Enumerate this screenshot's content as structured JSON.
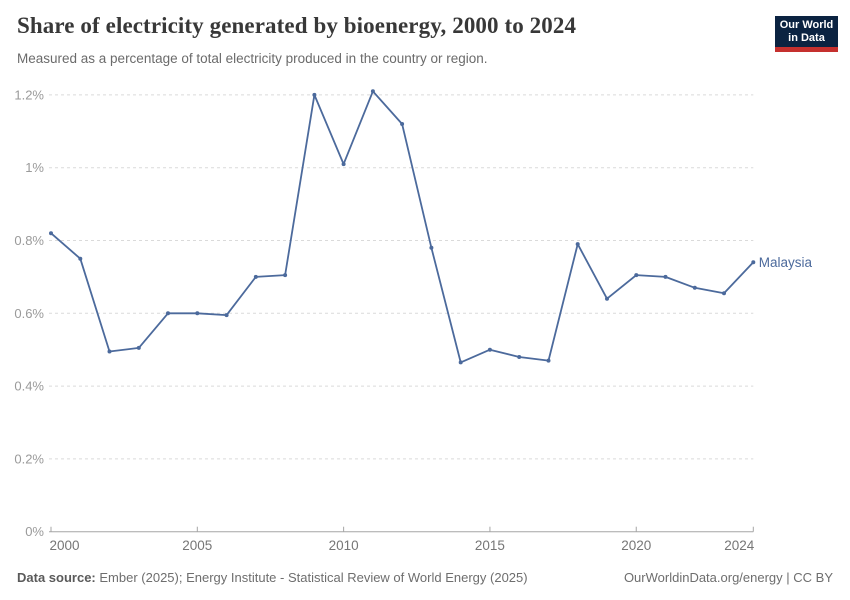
{
  "header": {
    "title": "Share of electricity generated by bioenergy, 2000 to 2024",
    "subtitle": "Measured as a percentage of total electricity produced in the country or region.",
    "logo": {
      "line1": "Our World",
      "line2": "in Data"
    }
  },
  "chart_data": {
    "type": "line",
    "title": "Share of electricity generated by bioenergy, 2000 to 2024",
    "subtitle": "Measured as a percentage of total electricity produced in the country or region.",
    "xlabel": "",
    "ylabel": "",
    "xlim": [
      2000,
      2024
    ],
    "ylim": [
      0,
      1.2
    ],
    "grid": "horizontal-dashed",
    "legend_position": "end-of-line-label",
    "x_ticks": [
      2000,
      2005,
      2010,
      2015,
      2020,
      2024
    ],
    "y_ticks": [
      0,
      0.2,
      0.4,
      0.6,
      0.8,
      1,
      1.2
    ],
    "y_tick_labels": [
      "0%",
      "0.2%",
      "0.4%",
      "0.6%",
      "0.8%",
      "1%",
      "1.2%"
    ],
    "x": [
      2000,
      2001,
      2002,
      2003,
      2004,
      2005,
      2006,
      2007,
      2008,
      2009,
      2010,
      2011,
      2012,
      2013,
      2014,
      2015,
      2016,
      2017,
      2018,
      2019,
      2020,
      2021,
      2022,
      2023,
      2024
    ],
    "series": [
      {
        "name": "Malaysia",
        "color": "#4c6a9c",
        "values": [
          0.82,
          0.75,
          0.495,
          0.505,
          0.6,
          0.6,
          0.595,
          0.7,
          0.705,
          1.2,
          1.01,
          1.21,
          1.12,
          0.78,
          0.465,
          0.5,
          0.48,
          0.47,
          0.79,
          0.64,
          0.705,
          0.7,
          0.67,
          0.655,
          0.74
        ]
      }
    ]
  },
  "footer": {
    "source_label": "Data source:",
    "source_text": "Ember (2025); Energy Institute - Statistical Review of World Energy (2025)",
    "attribution": "OurWorldinData.org/energy | CC BY"
  },
  "colors": {
    "line": "#4c6a9c",
    "grid": "#dadada",
    "axis": "#a5a5a5",
    "y_tick_label": "#9a9a9a",
    "x_tick_label": "#767676",
    "logo_bg": "#0b2341",
    "logo_accent": "#c5302e"
  }
}
